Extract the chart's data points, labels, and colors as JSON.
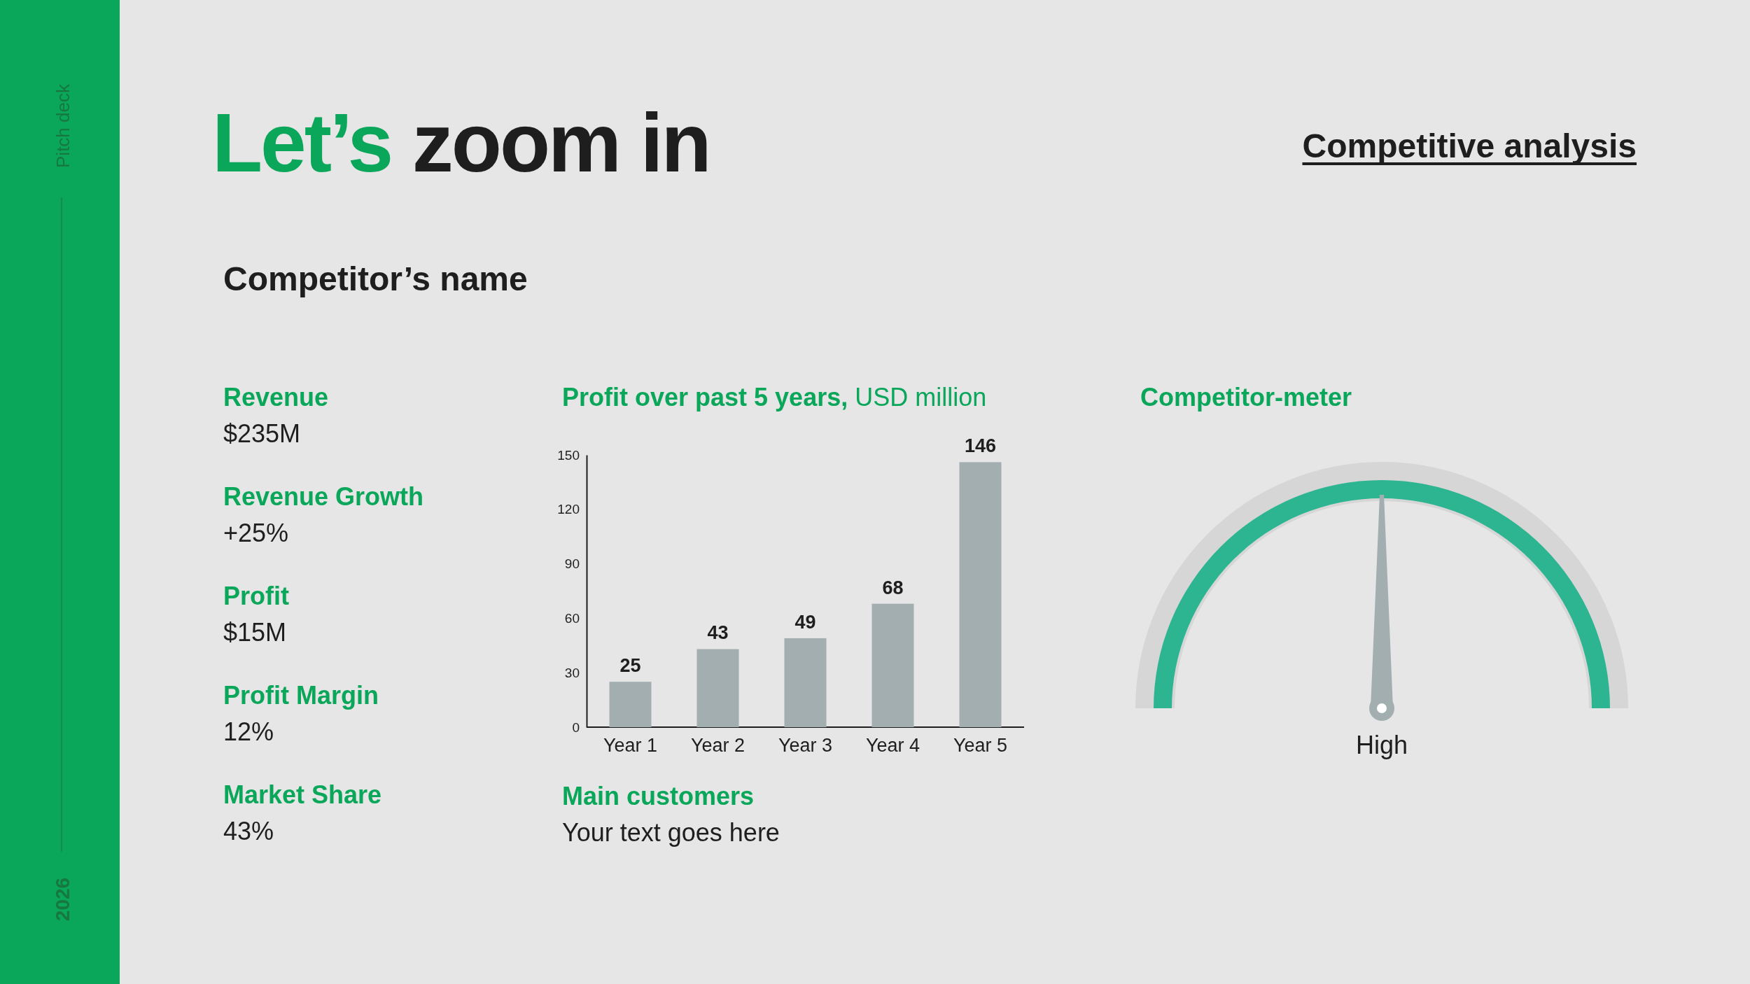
{
  "chart_data": [
    {
      "type": "other",
      "title": "Let’s zoom in",
      "subtitle": "Competitor’s name",
      "annotations": [
        "Competitive analysis",
        "Pitch deck",
        "2026",
        "Revenue",
        "$235M",
        "Revenue Growth",
        "+25%",
        "Profit",
        "$15M",
        "Profit Margin",
        "12%",
        "Market Share",
        "43%"
      ]
    },
    {
      "type": "bar",
      "title": "Profit over past 5 years,",
      "subtitle": "USD million",
      "categories": [
        "Year 1",
        "Year 2",
        "Year 3",
        "Year 4",
        "Year 5"
      ],
      "values": [
        25,
        43,
        49,
        68,
        146
      ],
      "color": "#a3aeb1",
      "ylim": [
        0,
        150
      ],
      "yticks": [
        0,
        30,
        60,
        90,
        120,
        150
      ],
      "data_labels": true
    },
    {
      "type": "other",
      "annotations": [
        "Main customers",
        "Your text goes here"
      ]
    },
    {
      "type": "pie",
      "title": "Competitor-meter",
      "categories": [
        null
      ],
      "values": [
        100
      ],
      "colors": [
        "#2db592"
      ],
      "needle": null,
      "annotations": [
        "High"
      ]
    }
  ]
}
